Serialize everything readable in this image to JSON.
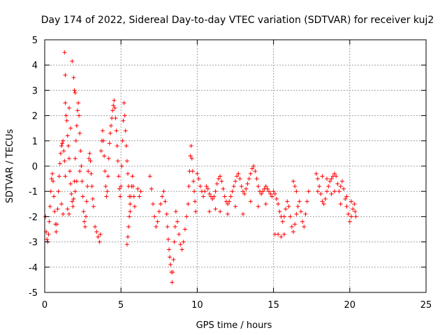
{
  "chart_data": {
    "type": "scatter",
    "title": "Day 174 of 2022, Sidereal Day-to-day VTEC variation (SDTVAR) for receiver kuj2",
    "xlabel": "GPS time / hours",
    "ylabel": "SDTVAR / TECUs",
    "xlim": [
      0,
      25
    ],
    "ylim": [
      -5,
      5
    ],
    "x_ticks": [
      0,
      5,
      10,
      15,
      20,
      25
    ],
    "y_ticks": [
      -5,
      -4,
      -3,
      -2,
      -1,
      0,
      1,
      2,
      3,
      4,
      5
    ],
    "grid": true,
    "marker": "+",
    "color": "#ff0000",
    "series": [
      {
        "name": "kuj2",
        "points": [
          [
            0.05,
            -2.0
          ],
          [
            0.1,
            -2.6
          ],
          [
            0.15,
            -2.9
          ],
          [
            0.2,
            -3.0
          ],
          [
            0.25,
            -2.7
          ],
          [
            0.3,
            -2.2
          ],
          [
            0.35,
            -1.6
          ],
          [
            0.4,
            -1.0
          ],
          [
            0.45,
            -0.5
          ],
          [
            0.5,
            -0.3
          ],
          [
            0.55,
            -0.6
          ],
          [
            0.6,
            -1.2
          ],
          [
            0.65,
            -1.8
          ],
          [
            0.7,
            -2.3
          ],
          [
            0.75,
            -2.6
          ],
          [
            0.8,
            -2.3
          ],
          [
            0.85,
            -1.7
          ],
          [
            0.9,
            -1.0
          ],
          [
            0.95,
            -0.4
          ],
          [
            1.0,
            0.1
          ],
          [
            1.05,
            0.5
          ],
          [
            1.1,
            0.8
          ],
          [
            1.15,
            0.9
          ],
          [
            1.2,
            1.0
          ],
          [
            1.25,
            0.6
          ],
          [
            1.3,
            0.2
          ],
          [
            1.35,
            -0.4
          ],
          [
            1.4,
            2.0
          ],
          [
            1.35,
            2.5
          ],
          [
            1.45,
            1.8
          ],
          [
            1.5,
            1.2
          ],
          [
            1.55,
            0.8
          ],
          [
            1.6,
            0.3
          ],
          [
            1.65,
            -0.2
          ],
          [
            1.7,
            -0.7
          ],
          [
            1.75,
            -1.1
          ],
          [
            1.8,
            -1.4
          ],
          [
            1.85,
            -1.6
          ],
          [
            1.9,
            -1.3
          ],
          [
            1.95,
            -0.6
          ],
          [
            2.0,
            0.3
          ],
          [
            2.05,
            1.0
          ],
          [
            2.1,
            1.6
          ],
          [
            2.15,
            2.2
          ],
          [
            2.2,
            2.5
          ],
          [
            2.25,
            2.0
          ],
          [
            2.3,
            1.3
          ],
          [
            2.35,
            0.6
          ],
          [
            2.4,
            0.0
          ],
          [
            2.45,
            -0.6
          ],
          [
            2.5,
            -1.2
          ],
          [
            2.55,
            -1.8
          ],
          [
            2.6,
            -2.2
          ],
          [
            2.65,
            -2.4
          ],
          [
            2.7,
            -2.0
          ],
          [
            2.75,
            -1.4
          ],
          [
            2.8,
            -0.8
          ],
          [
            2.85,
            -0.2
          ],
          [
            2.9,
            0.3
          ],
          [
            2.95,
            0.5
          ],
          [
            3.0,
            0.2
          ],
          [
            3.05,
            -0.3
          ],
          [
            3.1,
            -0.8
          ],
          [
            3.15,
            -1.3
          ],
          [
            3.2,
            -1.6
          ],
          [
            1.3,
            4.5
          ],
          [
            1.35,
            3.6
          ],
          [
            1.8,
            4.15
          ],
          [
            1.9,
            3.5
          ],
          [
            1.95,
            3.0
          ],
          [
            2.0,
            2.9
          ],
          [
            1.6,
            2.3
          ],
          [
            1.7,
            1.5
          ],
          [
            1.1,
            -1.5
          ],
          [
            1.2,
            -1.9
          ],
          [
            1.5,
            -1.7
          ],
          [
            1.6,
            -1.9
          ],
          [
            2.0,
            -1.0
          ],
          [
            2.1,
            -0.6
          ],
          [
            2.3,
            -0.2
          ],
          [
            3.3,
            -2.4
          ],
          [
            3.4,
            -2.6
          ],
          [
            3.5,
            -2.8
          ],
          [
            3.6,
            -3.0
          ],
          [
            3.65,
            -2.7
          ],
          [
            3.7,
            0.6
          ],
          [
            3.75,
            1.0
          ],
          [
            3.8,
            1.4
          ],
          [
            3.85,
            1.0
          ],
          [
            3.9,
            0.4
          ],
          [
            3.95,
            -0.2
          ],
          [
            4.0,
            -0.8
          ],
          [
            4.05,
            -1.2
          ],
          [
            4.1,
            -1.0
          ],
          [
            4.15,
            -0.4
          ],
          [
            4.2,
            0.3
          ],
          [
            4.25,
            0.9
          ],
          [
            4.3,
            1.3
          ],
          [
            4.35,
            1.6
          ],
          [
            4.4,
            1.9
          ],
          [
            4.45,
            2.2
          ],
          [
            4.5,
            2.4
          ],
          [
            4.55,
            2.6
          ],
          [
            4.6,
            2.3
          ],
          [
            4.65,
            1.9
          ],
          [
            4.7,
            1.4
          ],
          [
            4.75,
            0.8
          ],
          [
            4.8,
            0.2
          ],
          [
            4.85,
            -0.4
          ],
          [
            4.9,
            -0.9
          ],
          [
            4.95,
            -1.2
          ],
          [
            5.0,
            -0.8
          ],
          [
            5.05,
            0.0
          ],
          [
            5.1,
            1.0
          ],
          [
            5.15,
            1.8
          ],
          [
            5.2,
            2.5
          ],
          [
            5.25,
            2.0
          ],
          [
            5.3,
            1.4
          ],
          [
            5.35,
            0.8
          ],
          [
            5.4,
            0.2
          ],
          [
            5.45,
            -0.3
          ],
          [
            5.5,
            -0.8
          ],
          [
            5.55,
            -1.2
          ],
          [
            5.6,
            -1.5
          ],
          [
            5.65,
            -1.2
          ],
          [
            5.7,
            -0.8
          ],
          [
            5.75,
            -0.4
          ],
          [
            5.8,
            -0.8
          ],
          [
            5.85,
            -1.2
          ],
          [
            5.9,
            -1.6
          ],
          [
            5.4,
            -3.1
          ],
          [
            5.45,
            -2.8
          ],
          [
            5.5,
            -2.4
          ],
          [
            5.55,
            -2.0
          ],
          [
            5.6,
            -1.8
          ],
          [
            6.1,
            -0.9
          ],
          [
            6.2,
            -1.2
          ],
          [
            6.3,
            -1.0
          ],
          [
            6.9,
            -0.4
          ],
          [
            7.0,
            -0.9
          ],
          [
            7.1,
            -1.5
          ],
          [
            7.2,
            -2.0
          ],
          [
            7.3,
            -2.4
          ],
          [
            7.4,
            -2.2
          ],
          [
            7.5,
            -1.8
          ],
          [
            7.6,
            -1.5
          ],
          [
            7.7,
            -1.2
          ],
          [
            7.8,
            -1.0
          ],
          [
            7.9,
            -1.4
          ],
          [
            8.0,
            -1.9
          ],
          [
            8.05,
            -2.4
          ],
          [
            8.1,
            -2.9
          ],
          [
            8.15,
            -3.3
          ],
          [
            8.2,
            -3.6
          ],
          [
            8.25,
            -3.9
          ],
          [
            8.3,
            -4.2
          ],
          [
            8.35,
            -4.6
          ],
          [
            8.4,
            -4.2
          ],
          [
            8.45,
            -3.7
          ],
          [
            8.5,
            -3.0
          ],
          [
            8.55,
            -2.4
          ],
          [
            8.6,
            -1.8
          ],
          [
            8.7,
            -2.2
          ],
          [
            8.8,
            -2.7
          ],
          [
            8.9,
            -3.1
          ],
          [
            9.0,
            -3.3
          ],
          [
            9.1,
            -3.0
          ],
          [
            9.2,
            -2.5
          ],
          [
            9.3,
            -2.0
          ],
          [
            9.4,
            -1.5
          ],
          [
            9.45,
            -0.8
          ],
          [
            9.5,
            -0.2
          ],
          [
            9.55,
            0.4
          ],
          [
            9.6,
            0.8
          ],
          [
            9.65,
            0.3
          ],
          [
            9.7,
            -0.2
          ],
          [
            9.75,
            -0.6
          ],
          [
            9.8,
            -1.0
          ],
          [
            9.85,
            -1.4
          ],
          [
            9.9,
            -1.8
          ],
          [
            10.0,
            -0.3
          ],
          [
            10.1,
            -0.5
          ],
          [
            10.2,
            -0.8
          ],
          [
            10.3,
            -1.0
          ],
          [
            10.4,
            -1.2
          ],
          [
            10.5,
            -1.0
          ],
          [
            10.6,
            -0.8
          ],
          [
            10.7,
            -0.9
          ],
          [
            10.8,
            -1.1
          ],
          [
            10.9,
            -1.2
          ],
          [
            11.0,
            -1.3
          ],
          [
            11.1,
            -1.2
          ],
          [
            11.2,
            -1.0
          ],
          [
            11.3,
            -0.7
          ],
          [
            11.4,
            -0.5
          ],
          [
            11.5,
            -0.4
          ],
          [
            11.6,
            -0.6
          ],
          [
            11.7,
            -0.9
          ],
          [
            11.8,
            -1.2
          ],
          [
            11.9,
            -1.4
          ],
          [
            12.0,
            -1.5
          ],
          [
            12.1,
            -1.4
          ],
          [
            12.2,
            -1.2
          ],
          [
            12.3,
            -1.0
          ],
          [
            12.4,
            -0.8
          ],
          [
            12.5,
            -0.6
          ],
          [
            12.6,
            -0.4
          ],
          [
            12.7,
            -0.3
          ],
          [
            12.8,
            -0.5
          ],
          [
            12.9,
            -0.8
          ],
          [
            13.0,
            -1.0
          ],
          [
            13.1,
            -1.1
          ],
          [
            13.2,
            -0.9
          ],
          [
            13.3,
            -0.7
          ],
          [
            13.4,
            -0.5
          ],
          [
            13.5,
            -0.3
          ],
          [
            13.6,
            -0.1
          ],
          [
            13.7,
            0.0
          ],
          [
            13.8,
            -0.2
          ],
          [
            13.9,
            -0.5
          ],
          [
            14.0,
            -0.8
          ],
          [
            14.1,
            -1.0
          ],
          [
            14.2,
            -1.1
          ],
          [
            14.3,
            -1.0
          ],
          [
            14.4,
            -0.9
          ],
          [
            14.5,
            -0.8
          ],
          [
            14.6,
            -0.9
          ],
          [
            14.7,
            -1.0
          ],
          [
            14.8,
            -1.1
          ],
          [
            14.9,
            -1.2
          ],
          [
            15.0,
            -1.0
          ],
          [
            15.1,
            -1.1
          ],
          [
            15.2,
            -1.3
          ],
          [
            15.3,
            -1.5
          ],
          [
            15.4,
            -1.8
          ],
          [
            15.5,
            -2.0
          ],
          [
            15.6,
            -2.2
          ],
          [
            15.7,
            -2.0
          ],
          [
            15.8,
            -1.7
          ],
          [
            15.9,
            -1.4
          ],
          [
            15.1,
            -2.7
          ],
          [
            15.3,
            -2.7
          ],
          [
            15.5,
            -2.8
          ],
          [
            15.7,
            -2.7
          ],
          [
            16.0,
            -1.6
          ],
          [
            16.1,
            -2.0
          ],
          [
            16.2,
            -2.4
          ],
          [
            16.3,
            -2.6
          ],
          [
            16.4,
            -2.3
          ],
          [
            16.5,
            -1.9
          ],
          [
            16.6,
            -1.6
          ],
          [
            16.7,
            -1.4
          ],
          [
            16.8,
            -1.8
          ],
          [
            16.9,
            -2.2
          ],
          [
            17.0,
            -2.4
          ],
          [
            17.1,
            -1.9
          ],
          [
            17.2,
            -1.4
          ],
          [
            17.3,
            -1.0
          ],
          [
            16.3,
            -0.6
          ],
          [
            16.4,
            -0.8
          ],
          [
            16.5,
            -1.0
          ],
          [
            11.5,
            -1.8
          ],
          [
            12.0,
            -1.9
          ],
          [
            12.5,
            -1.6
          ],
          [
            13.0,
            -1.9
          ],
          [
            13.5,
            -1.4
          ],
          [
            14.0,
            -1.6
          ],
          [
            14.5,
            -1.5
          ],
          [
            10.8,
            -1.8
          ],
          [
            11.2,
            -1.7
          ],
          [
            17.8,
            -0.3
          ],
          [
            17.9,
            -0.5
          ],
          [
            18.0,
            -0.8
          ],
          [
            18.1,
            -1.1
          ],
          [
            18.2,
            -1.4
          ],
          [
            18.3,
            -1.5
          ],
          [
            18.4,
            -1.3
          ],
          [
            18.5,
            -1.0
          ],
          [
            18.6,
            -0.8
          ],
          [
            18.7,
            -0.6
          ],
          [
            18.8,
            -0.5
          ],
          [
            18.9,
            -0.4
          ],
          [
            19.0,
            -0.3
          ],
          [
            19.1,
            -0.4
          ],
          [
            19.2,
            -0.7
          ],
          [
            19.3,
            -1.0
          ],
          [
            19.4,
            -0.8
          ],
          [
            19.5,
            -0.6
          ],
          [
            19.6,
            -0.9
          ],
          [
            19.7,
            -1.3
          ],
          [
            19.8,
            -1.6
          ],
          [
            19.9,
            -1.9
          ],
          [
            20.0,
            -2.2
          ],
          [
            20.1,
            -2.0
          ],
          [
            20.2,
            -1.7
          ],
          [
            20.3,
            -1.5
          ],
          [
            20.35,
            -1.8
          ],
          [
            20.4,
            -2.0
          ],
          [
            17.9,
            -1.0
          ],
          [
            18.2,
            -0.4
          ],
          [
            18.5,
            -0.5
          ],
          [
            18.8,
            -1.1
          ],
          [
            19.0,
            -1.0
          ],
          [
            19.4,
            -1.5
          ],
          [
            19.8,
            -1.2
          ],
          [
            20.1,
            -1.4
          ]
        ]
      }
    ]
  }
}
